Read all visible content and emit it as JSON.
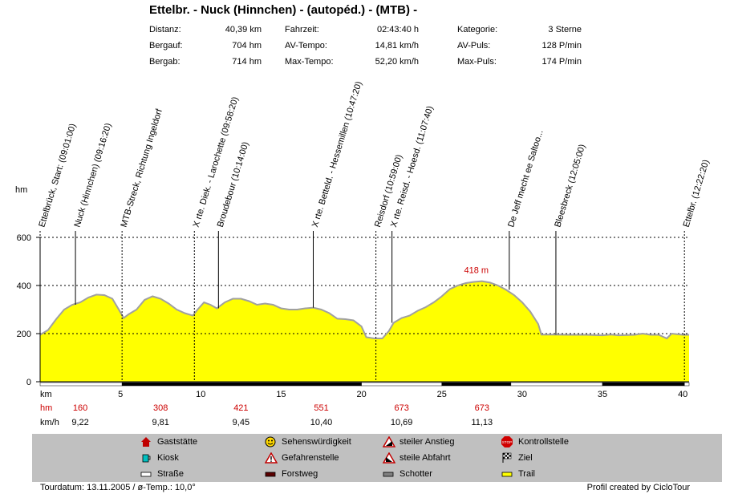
{
  "title": "Ettelbr. - Nuck (Hinnchen) - (autopéd.) - (MTB) -",
  "stats": [
    {
      "label": "Distanz:",
      "value": "40,39 km"
    },
    {
      "label": "Fahrzeit:",
      "value": "02:43:40 h"
    },
    {
      "label": "Kategorie:",
      "value": "3 Sterne"
    },
    {
      "label": "Bergauf:",
      "value": "704 hm"
    },
    {
      "label": "AV-Tempo:",
      "value": "14,81 km/h"
    },
    {
      "label": "AV-Puls:",
      "value": "128 P/min"
    },
    {
      "label": "Bergab:",
      "value": "714 hm"
    },
    {
      "label": "Max-Tempo:",
      "value": "52,20 km/h"
    },
    {
      "label": "Max-Puls:",
      "value": "174 P/min"
    }
  ],
  "chart_data": {
    "type": "area",
    "ylabel": "hm",
    "xlabel": "km",
    "xlim": [
      0,
      40.39
    ],
    "ylim": [
      0,
      600
    ],
    "xticks": [
      5,
      10,
      15,
      20,
      25,
      30,
      35,
      40
    ],
    "yticks": [
      0,
      200,
      400,
      600
    ],
    "fill_color": "#ffff00",
    "line_color": "#a0a0a0",
    "max_label": "418 m",
    "max_point": {
      "x": 27.3,
      "y": 418
    },
    "profile": [
      [
        0,
        195
      ],
      [
        0.5,
        215
      ],
      [
        1.0,
        260
      ],
      [
        1.5,
        300
      ],
      [
        2.0,
        320
      ],
      [
        2.5,
        330
      ],
      [
        3.0,
        350
      ],
      [
        3.5,
        362
      ],
      [
        4.0,
        360
      ],
      [
        4.5,
        345
      ],
      [
        4.9,
        300
      ],
      [
        5.2,
        265
      ],
      [
        5.5,
        280
      ],
      [
        6.0,
        300
      ],
      [
        6.5,
        340
      ],
      [
        7.0,
        355
      ],
      [
        7.5,
        345
      ],
      [
        8.0,
        325
      ],
      [
        8.5,
        300
      ],
      [
        9.0,
        285
      ],
      [
        9.5,
        275
      ],
      [
        9.8,
        300
      ],
      [
        10.2,
        330
      ],
      [
        10.6,
        320
      ],
      [
        11.0,
        305
      ],
      [
        11.5,
        330
      ],
      [
        12.0,
        345
      ],
      [
        12.5,
        345
      ],
      [
        13.0,
        335
      ],
      [
        13.5,
        320
      ],
      [
        14.0,
        325
      ],
      [
        14.5,
        320
      ],
      [
        15.0,
        305
      ],
      [
        15.5,
        300
      ],
      [
        16.0,
        300
      ],
      [
        16.5,
        305
      ],
      [
        17.0,
        308
      ],
      [
        17.5,
        300
      ],
      [
        18.0,
        285
      ],
      [
        18.5,
        262
      ],
      [
        19.0,
        260
      ],
      [
        19.5,
        255
      ],
      [
        20.0,
        230
      ],
      [
        20.3,
        185
      ],
      [
        20.8,
        180
      ],
      [
        21.3,
        180
      ],
      [
        21.7,
        210
      ],
      [
        22.0,
        245
      ],
      [
        22.5,
        265
      ],
      [
        23.0,
        275
      ],
      [
        23.5,
        295
      ],
      [
        24.0,
        310
      ],
      [
        24.5,
        330
      ],
      [
        25.0,
        355
      ],
      [
        25.5,
        385
      ],
      [
        26.0,
        400
      ],
      [
        26.5,
        410
      ],
      [
        27.0,
        415
      ],
      [
        27.5,
        418
      ],
      [
        28.0,
        412
      ],
      [
        28.5,
        400
      ],
      [
        29.0,
        382
      ],
      [
        29.5,
        360
      ],
      [
        30.0,
        330
      ],
      [
        30.5,
        292
      ],
      [
        31.0,
        240
      ],
      [
        31.2,
        196
      ],
      [
        32.0,
        196
      ],
      [
        33.0,
        195
      ],
      [
        34.0,
        195
      ],
      [
        35.0,
        193
      ],
      [
        35.5,
        196
      ],
      [
        36.0,
        193
      ],
      [
        37.0,
        195
      ],
      [
        37.5,
        200
      ],
      [
        38.0,
        195
      ],
      [
        38.5,
        195
      ],
      [
        39.0,
        180
      ],
      [
        39.3,
        200
      ],
      [
        40.0,
        195
      ],
      [
        40.39,
        195
      ]
    ],
    "waypoints": [
      {
        "km": 0.0,
        "label": "Ettelbrück, Start: (09:01:00)"
      },
      {
        "km": 2.2,
        "label": "Nuck (Hinnchen) (09:16:20)"
      },
      {
        "km": 5.1,
        "label": "MTB-Streck, Richtung Ingeldorf"
      },
      {
        "km": 9.6,
        "label": "X rte. Diek. - Larochette (09:58:20)"
      },
      {
        "km": 11.1,
        "label": "Broudebour (10:14:00)"
      },
      {
        "km": 17.0,
        "label": "X rte. Betteld. - Hessemillen (10:47:20)"
      },
      {
        "km": 20.9,
        "label": "Reisdorf (10:59:00)"
      },
      {
        "km": 21.9,
        "label": "X rte. Reisd. - Hoesd. (11:07:40)"
      },
      {
        "km": 29.2,
        "label": "De Jeff mecht ee Saltoo..."
      },
      {
        "km": 32.1,
        "label": "Bleesbreck (12:05:00)"
      },
      {
        "km": 40.1,
        "label": "Ettelbr. (12:22:20)"
      }
    ],
    "waypoint_dashed": [
      0,
      5.1,
      9.6,
      20.9,
      40.1
    ],
    "segments": [
      {
        "from": 0.0,
        "to": 5.1,
        "type": "Straße"
      },
      {
        "from": 5.1,
        "to": 20.0,
        "type": "Forstweg"
      },
      {
        "from": 20.0,
        "to": 25.0,
        "type": "Straße"
      },
      {
        "from": 25.0,
        "to": 29.3,
        "type": "Forstweg"
      },
      {
        "from": 29.3,
        "to": 35.0,
        "type": "Straße"
      },
      {
        "from": 35.0,
        "to": 40.1,
        "type": "Forstweg"
      },
      {
        "from": 40.1,
        "to": 40.39,
        "type": "Straße"
      }
    ],
    "sections": [
      {
        "center": 2.5,
        "hm": "160",
        "kmh": "9,22"
      },
      {
        "center": 7.5,
        "hm": "308",
        "kmh": "9,81"
      },
      {
        "center": 12.5,
        "hm": "421",
        "kmh": "9,45"
      },
      {
        "center": 17.5,
        "hm": "551",
        "kmh": "10,40"
      },
      {
        "center": 22.5,
        "hm": "673",
        "kmh": "10,69"
      },
      {
        "center": 27.5,
        "hm": "673",
        "kmh": "11,13"
      }
    ],
    "row_labels": {
      "km": "km",
      "hm": "hm",
      "kmh": "km/h"
    }
  },
  "legend": [
    {
      "icon": "house-icon",
      "label": "Gaststätte"
    },
    {
      "icon": "smiley-icon",
      "label": "Sehenswürdigkeit"
    },
    {
      "icon": "steep-up-icon",
      "label": "steiler Anstieg"
    },
    {
      "icon": "stop-icon",
      "label": "Kontrollstelle"
    },
    {
      "icon": "cup-icon",
      "label": "Kiosk"
    },
    {
      "icon": "warning-icon",
      "label": "Gefahrenstelle"
    },
    {
      "icon": "steep-down-icon",
      "label": "steile Abfahrt"
    },
    {
      "icon": "flag-icon",
      "label": "Ziel"
    },
    {
      "icon": "road-swatch",
      "label": "Straße"
    },
    {
      "icon": "forest-swatch",
      "label": "Forstweg"
    },
    {
      "icon": "gravel-swatch",
      "label": "Schotter"
    },
    {
      "icon": "trail-swatch",
      "label": "Trail"
    }
  ],
  "footer": {
    "left": "Tourdatum: 13.11.2005  /  ø-Temp.: 10,0°",
    "right": "Profil created by CicloTour"
  },
  "colors": {
    "fill": "#ffff00",
    "profile_line": "#a0a0a0",
    "red_text": "#cc0000",
    "legend_bg": "#c0c0c0"
  }
}
